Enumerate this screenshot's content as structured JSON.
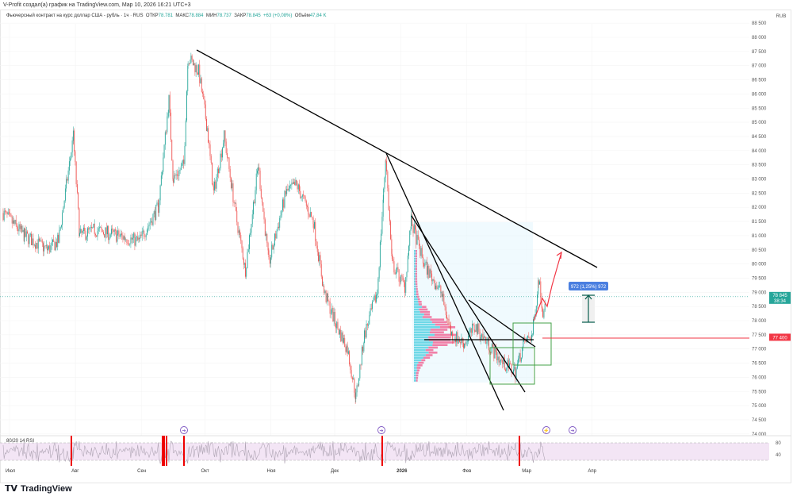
{
  "header": {
    "caption": "V-Profit создал(а) график на TradingView.com, Мар 10, 2026 16:21 UTC+3"
  },
  "legend": {
    "symbol": "Фьючерсный контракт на курс доллар США - рубль · 1ч · RUS",
    "open_label": "ОТКР",
    "open": "78.781",
    "high_label": "МАКС",
    "high": "78.884",
    "low_label": "МИН",
    "low": "78.737",
    "close_label": "ЗАКР",
    "close": "78.845",
    "change": "+63 (+0,08%)",
    "volume_label": "Объём",
    "volume": "47,84 K"
  },
  "colors": {
    "up": "#26a69a",
    "down": "#ef5350",
    "last_price": "#26a69a",
    "level": "#f23645",
    "measure": "#2962ff",
    "rsi_band": "#f3e5f5",
    "profile_up": "#4dd0e1",
    "profile_down": "#f06292"
  },
  "price_axis": {
    "currency": "RUB",
    "last_price_label": "78 845",
    "countdown": "38:34",
    "level_label": "77 400"
  },
  "measure_label": "972 (1,25%) 972",
  "rsi": {
    "label": "80/20 14 RSI",
    "levels": [
      "80",
      "40"
    ]
  },
  "footer": {
    "brand": "TradingView"
  },
  "chart_data": {
    "type": "candlestick",
    "title": "Фьючерсный контракт на курс доллар США - рубль · 1ч · RUS",
    "ylim": [
      74000,
      88500
    ],
    "y_ticks": [
      88500,
      88000,
      87500,
      87000,
      86500,
      86000,
      85500,
      85000,
      84500,
      84000,
      83500,
      83000,
      82500,
      82000,
      81500,
      81000,
      80500,
      80000,
      79500,
      79000,
      78500,
      78000,
      77500,
      77000,
      76500,
      76000,
      75500,
      75000,
      74500,
      74000
    ],
    "x_ticks": [
      {
        "label": "Июл",
        "date": "2025-07-01"
      },
      {
        "label": "Авг",
        "date": "2025-08-01"
      },
      {
        "label": "Сен",
        "date": "2025-09-01"
      },
      {
        "label": "Окт",
        "date": "2025-10-01"
      },
      {
        "label": "Ноя",
        "date": "2025-11-01"
      },
      {
        "label": "Дек",
        "date": "2025-12-01"
      },
      {
        "label": "2026",
        "date": "2026-01-01"
      },
      {
        "label": "Фев",
        "date": "2026-02-01"
      },
      {
        "label": "Мар",
        "date": "2026-03-01"
      },
      {
        "label": "Апр",
        "date": "2026-04-01"
      }
    ],
    "price_path": [
      [
        "2025-06-28",
        81800
      ],
      [
        "2025-07-08",
        81000
      ],
      [
        "2025-07-19",
        80500
      ],
      [
        "2025-07-24",
        80800
      ],
      [
        "2025-07-31",
        84500
      ],
      [
        "2025-08-03",
        81000
      ],
      [
        "2025-08-10",
        81200
      ],
      [
        "2025-08-21",
        81000
      ],
      [
        "2025-08-31",
        80800
      ],
      [
        "2025-09-09",
        82000
      ],
      [
        "2025-09-14",
        85800
      ],
      [
        "2025-09-16",
        83000
      ],
      [
        "2025-09-21",
        83500
      ],
      [
        "2025-09-23",
        87300
      ],
      [
        "2025-09-28",
        86800
      ],
      [
        "2025-10-02",
        84800
      ],
      [
        "2025-10-05",
        82500
      ],
      [
        "2025-10-10",
        84500
      ],
      [
        "2025-10-16",
        81500
      ],
      [
        "2025-10-20",
        79800
      ],
      [
        "2025-10-26",
        83500
      ],
      [
        "2025-10-31",
        80000
      ],
      [
        "2025-11-08",
        82500
      ],
      [
        "2025-11-13",
        82800
      ],
      [
        "2025-11-21",
        81500
      ],
      [
        "2025-11-26",
        79000
      ],
      [
        "2025-12-02",
        77800
      ],
      [
        "2025-12-07",
        77000
      ],
      [
        "2025-12-11",
        75300
      ],
      [
        "2025-12-15",
        77500
      ],
      [
        "2025-12-21",
        79000
      ],
      [
        "2025-12-24",
        82500
      ],
      [
        "2025-12-25",
        83800
      ],
      [
        "2025-12-28",
        80000
      ],
      [
        "2026-01-03",
        79200
      ],
      [
        "2026-01-06",
        81500
      ],
      [
        "2026-01-12",
        80000
      ],
      [
        "2026-01-20",
        79000
      ],
      [
        "2026-01-25",
        77500
      ],
      [
        "2026-01-31",
        77200
      ],
      [
        "2026-02-05",
        77800
      ],
      [
        "2026-02-13",
        77000
      ],
      [
        "2026-02-18",
        76500
      ],
      [
        "2026-02-24",
        76200
      ],
      [
        "2026-02-28",
        77200
      ],
      [
        "2026-03-04",
        77500
      ],
      [
        "2026-03-07",
        79500
      ],
      [
        "2026-03-09",
        78300
      ],
      [
        "2026-03-10",
        78845
      ]
    ],
    "last_price": 78845,
    "horizontal_level": 77400
  }
}
